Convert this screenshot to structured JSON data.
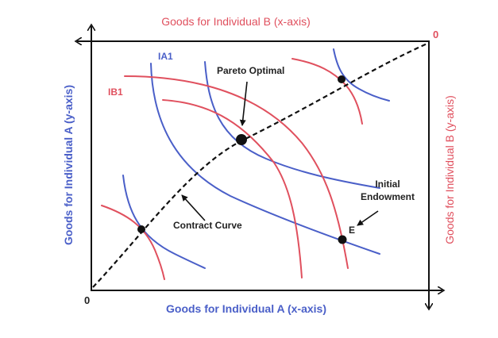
{
  "diagram": {
    "title_top": "Goods for Individual B (x-axis)",
    "title_bottom": "Goods for Individual A (x-axis)",
    "axis_left": "Goods for Individual A (y-axis)",
    "axis_right": "Goods for Individual B (y-axis)",
    "origin_a": "0",
    "origin_b": "0",
    "label_ia1": "IA1",
    "label_ib1": "IB1",
    "label_pareto": "Pareto Optimal",
    "label_contract": "Contract Curve",
    "label_initial_line1": "Initial",
    "label_initial_line2": "Endowment",
    "label_e": "E"
  },
  "colors": {
    "a_curves": "#4a5fc8",
    "b_curves": "#e0505e",
    "axis": "#111111",
    "text": "#222222"
  }
}
